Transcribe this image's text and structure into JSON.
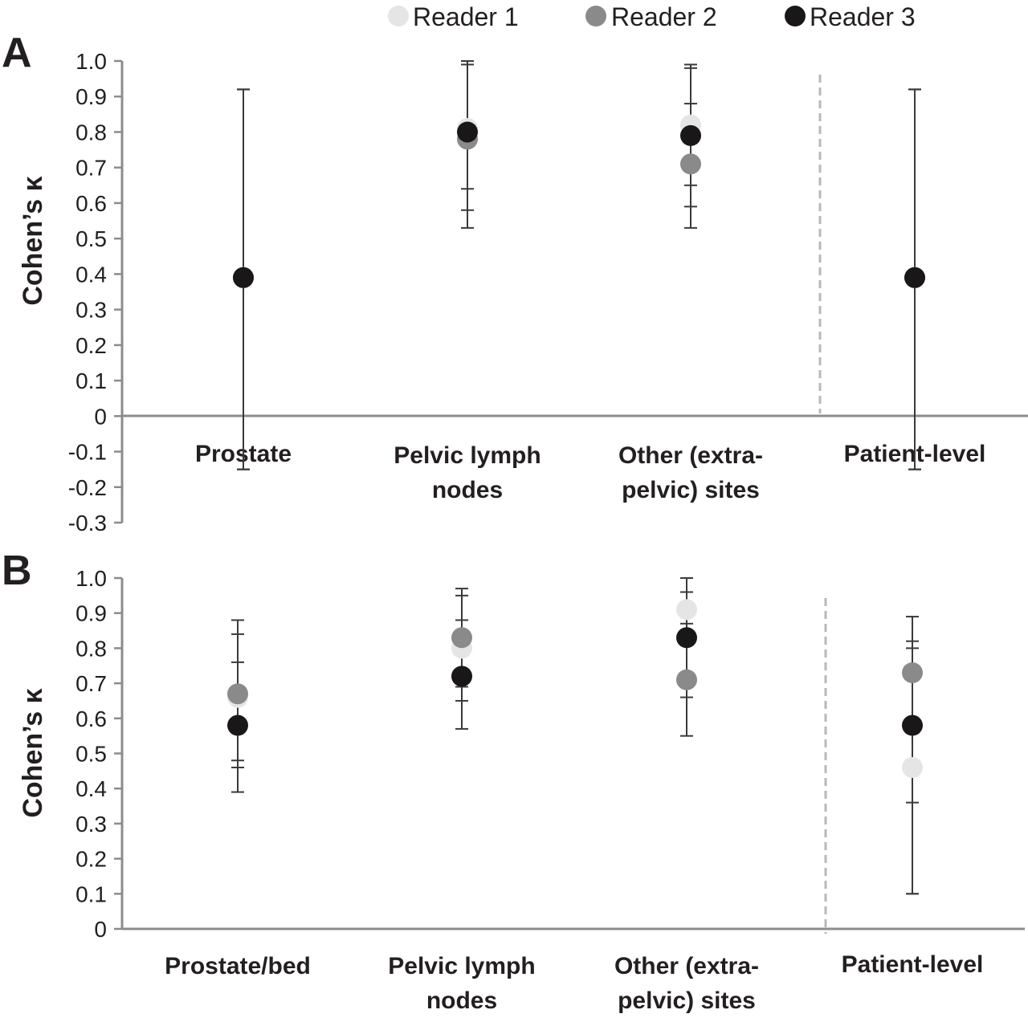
{
  "legend": {
    "items": [
      {
        "label": "Reader 1",
        "color": "#e5e5e5"
      },
      {
        "label": "Reader 2",
        "color": "#8a8a8a"
      },
      {
        "label": "Reader 3",
        "color": "#1a1718"
      }
    ]
  },
  "chart_data": [
    {
      "panel": "A",
      "type": "scatter",
      "ylabel": "Cohen’s κ",
      "ylim": [
        -0.3,
        1.0
      ],
      "yticks": [
        "1.0",
        "0.9",
        "0.8",
        "0.7",
        "0.6",
        "0.5",
        "0.4",
        "0.3",
        "0.2",
        "0.1",
        "0",
        "-0.1",
        "-0.2",
        "-0.3"
      ],
      "categories": [
        [
          "Prostate"
        ],
        [
          "Pelvic lymph",
          "nodes"
        ],
        [
          "Other (extra-",
          "pelvic) sites"
        ],
        [
          "Patient-level"
        ]
      ],
      "series": [
        {
          "name": "Reader 1",
          "values": [
            0.39,
            0.81,
            0.82,
            0.39
          ],
          "ci": [
            [
              -0.15,
              0.92
            ],
            [
              0.64,
              1.0
            ],
            [
              0.65,
              0.99
            ],
            [
              -0.15,
              0.92
            ]
          ]
        },
        {
          "name": "Reader 2",
          "values": [
            0.39,
            0.78,
            0.71,
            0.39
          ],
          "ci": [
            [
              -0.15,
              0.92
            ],
            [
              0.53,
              0.99
            ],
            [
              0.53,
              0.88
            ],
            [
              -0.15,
              0.92
            ]
          ]
        },
        {
          "name": "Reader 3",
          "values": [
            0.39,
            0.8,
            0.79,
            0.39
          ],
          "ci": [
            [
              -0.15,
              0.92
            ],
            [
              0.58,
              1.0
            ],
            [
              0.59,
              0.98
            ],
            [
              -0.15,
              0.92
            ]
          ]
        }
      ]
    },
    {
      "panel": "B",
      "type": "scatter",
      "ylabel": "Cohen’s κ",
      "ylim": [
        0,
        1.0
      ],
      "yticks": [
        "1.0",
        "0.9",
        "0.8",
        "0.7",
        "0.6",
        "0.5",
        "0.4",
        "0.3",
        "0.2",
        "0.1",
        "0"
      ],
      "categories": [
        [
          "Prostate/bed"
        ],
        [
          "Pelvic lymph",
          "nodes"
        ],
        [
          "Other (extra-",
          "pelvic) sites"
        ],
        [
          "Patient-level"
        ]
      ],
      "series": [
        {
          "name": "Reader 1",
          "values": [
            0.66,
            0.8,
            0.91,
            0.46
          ],
          "ci": [
            [
              0.46,
              0.84
            ],
            [
              0.65,
              0.95
            ],
            [
              0.71,
              1.0
            ],
            [
              0.1,
              0.82
            ]
          ]
        },
        {
          "name": "Reader 2",
          "values": [
            0.67,
            0.83,
            0.71,
            0.73
          ],
          "ci": [
            [
              0.48,
              0.88
            ],
            [
              0.69,
              0.97
            ],
            [
              0.55,
              0.87
            ],
            [
              0.36,
              0.89
            ]
          ]
        },
        {
          "name": "Reader 3",
          "values": [
            0.58,
            0.72,
            0.83,
            0.58
          ],
          "ci": [
            [
              0.39,
              0.76
            ],
            [
              0.57,
              0.88
            ],
            [
              0.66,
              0.96
            ],
            [
              0.1,
              0.8
            ]
          ]
        }
      ]
    }
  ]
}
